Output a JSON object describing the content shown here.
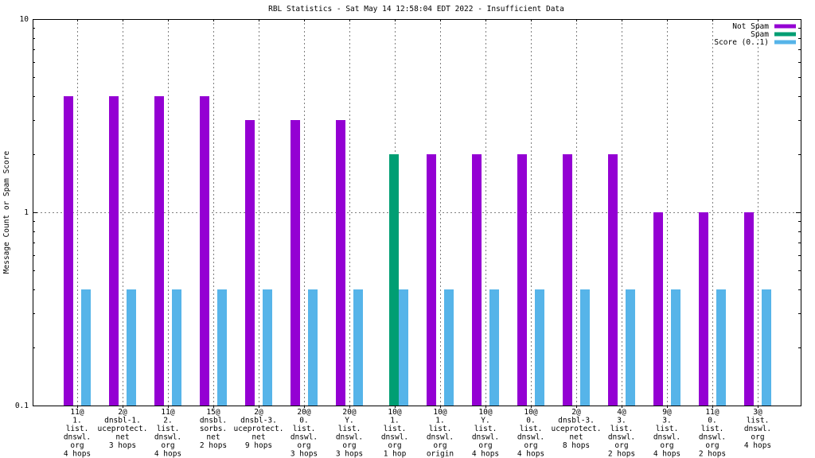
{
  "title": "RBL Statistics - Sat May 14 12:58:04 EDT 2022 - Insufficient Data",
  "chart_data": {
    "type": "bar",
    "scale": "log",
    "title": "RBL Statistics - Sat May 14 12:58:04 EDT 2022 - Insufficient Data",
    "ylabel": "Message Count or Spam Score",
    "ylim": [
      0.1,
      10
    ],
    "yticks": [
      {
        "v": 0.1,
        "label": "0.1"
      },
      {
        "v": 1,
        "label": "1"
      },
      {
        "v": 10,
        "label": "10"
      }
    ],
    "grid": true,
    "legend_position": "top-right",
    "colors": {
      "not_spam": "#9400d3",
      "spam": "#009e73",
      "score": "#56b4e9",
      "grid": "#808080"
    },
    "legend": [
      {
        "label": "Not Spam",
        "series": "not_spam"
      },
      {
        "label": "Spam",
        "series": "spam"
      },
      {
        "label": "Score (0..1)",
        "series": "score"
      }
    ],
    "categories": [
      [
        "11@",
        "1.",
        "list.",
        "dnswl.",
        "org",
        "4 hops"
      ],
      [
        "2@",
        "dnsbl-1.",
        "uceprotect.",
        "net",
        "3 hops"
      ],
      [
        "11@",
        "2.",
        "list.",
        "dnswl.",
        "org",
        "4 hops"
      ],
      [
        "15@",
        "dnsbl.",
        "sorbs.",
        "net",
        "2 hops"
      ],
      [
        "2@",
        "dnsbl-3.",
        "uceprotect.",
        "net",
        "9 hops"
      ],
      [
        "20@",
        "0.",
        "list.",
        "dnswl.",
        "org",
        "3 hops"
      ],
      [
        "20@",
        "Y.",
        "list.",
        "dnswl.",
        "org",
        "3 hops"
      ],
      [
        "10@",
        "1.",
        "list.",
        "dnswl.",
        "org",
        "1 hop"
      ],
      [
        "10@",
        "1.",
        "list.",
        "dnswl.",
        "org",
        "origin"
      ],
      [
        "10@",
        "Y.",
        "list.",
        "dnswl.",
        "org",
        "4 hops"
      ],
      [
        "10@",
        "0.",
        "list.",
        "dnswl.",
        "org",
        "4 hops"
      ],
      [
        "2@",
        "dnsbl-3.",
        "uceprotect.",
        "net",
        "8 hops"
      ],
      [
        "4@",
        "3.",
        "list.",
        "dnswl.",
        "org",
        "2 hops"
      ],
      [
        "9@",
        "3.",
        "list.",
        "dnswl.",
        "org",
        "4 hops"
      ],
      [
        "11@",
        "0.",
        "list.",
        "dnswl.",
        "org",
        "2 hops"
      ],
      [
        "3@",
        "list.",
        "dnswl.",
        "org",
        "4 hops"
      ]
    ],
    "series": [
      {
        "name": "Not Spam",
        "values": [
          4,
          4,
          4,
          4,
          3,
          3,
          3,
          null,
          2,
          2,
          2,
          2,
          2,
          1,
          1,
          1
        ]
      },
      {
        "name": "Spam",
        "values": [
          null,
          null,
          null,
          null,
          null,
          null,
          null,
          2,
          null,
          null,
          null,
          null,
          null,
          null,
          null,
          null
        ]
      },
      {
        "name": "Score (0..1)",
        "values": [
          0.4,
          0.4,
          0.4,
          0.4,
          0.4,
          0.4,
          0.4,
          0.4,
          0.4,
          0.4,
          0.4,
          0.4,
          0.4,
          0.4,
          0.4,
          0.4
        ]
      }
    ]
  }
}
